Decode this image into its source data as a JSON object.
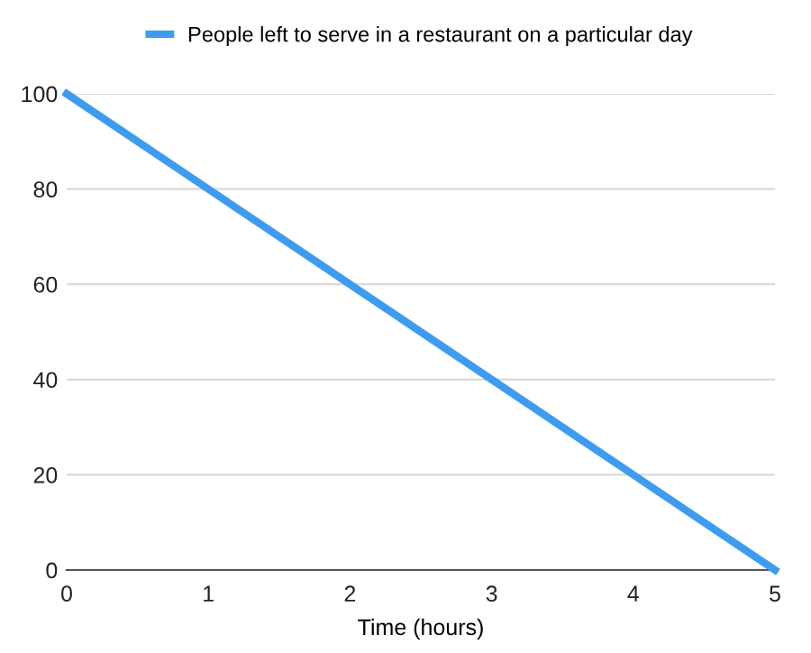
{
  "chart_data": {
    "type": "line",
    "xlabel": "Time (hours)",
    "x": [
      0,
      1,
      2,
      3,
      4,
      5
    ],
    "series": [
      {
        "name": "People left to serve in a restaurant on a particular day",
        "color": "#3d9cf0",
        "values": [
          100,
          80,
          60,
          40,
          20,
          0
        ]
      }
    ],
    "xlim": [
      0,
      5
    ],
    "xticks": [
      0,
      1,
      2,
      3,
      4,
      5
    ],
    "ylim": [
      0,
      100
    ],
    "yticks": [
      0,
      20,
      40,
      60,
      80,
      100
    ],
    "grid": "y",
    "legend": "top",
    "marker": "none",
    "line_style": "solid"
  }
}
